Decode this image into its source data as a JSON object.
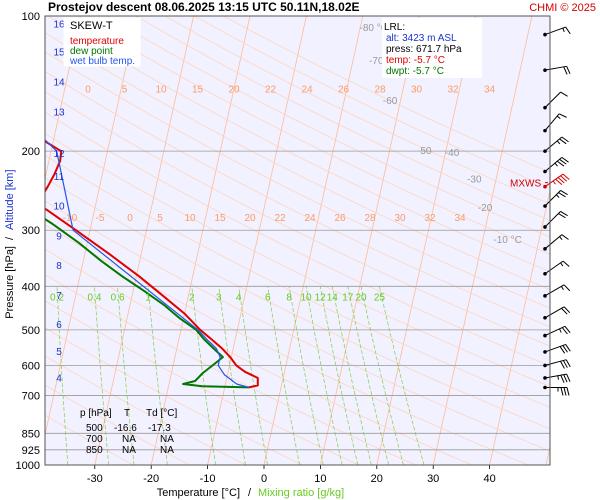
{
  "header": {
    "title": "Prostejov   descent   08.06.2025 13:15 UTC  50.11N,18.02E",
    "copyright": "CHMI © 2025"
  },
  "legend": {
    "title": "SKEW-T",
    "items": [
      {
        "label": "temperature",
        "color": "#e00000"
      },
      {
        "label": "dew point",
        "color": "#007700"
      },
      {
        "label": "wet bulb temp.",
        "color": "#2255ee"
      }
    ]
  },
  "lrl": {
    "title": "LRL:",
    "alt": "alt: 3423 m ASL",
    "press": "press: 671.7 hPa",
    "temp": "temp: -5.7 °C",
    "dwpt": "dwpt: -5.7 °C"
  },
  "table": {
    "headers": [
      "p [hPa]",
      "T",
      "Td [°C]"
    ],
    "rows": [
      [
        "500",
        "-16.6",
        "-17.3"
      ],
      [
        "700",
        "NA",
        "NA"
      ],
      [
        "850",
        "NA",
        "NA"
      ]
    ]
  },
  "mxws_label": "MXWS",
  "colors": {
    "temperature": "#e00000",
    "dewpoint": "#007700",
    "wetbulb": "#2255ee",
    "isotherm": "#ffbb99",
    "mixing": "#88cc44",
    "adiabat": "#ffd2b8",
    "background": "#f1f1ff"
  },
  "chart_data": {
    "type": "line",
    "subtype": "skew-t log-p diagram",
    "xlabel": "Temperature [°C]",
    "xlabel_secondary": "Mixing ratio [g/kg]",
    "ylabel": "Pressure [hPa]",
    "ylabel_secondary": "Altitude [km]",
    "x_ticks": [
      "-30",
      "-20",
      "-10",
      "0",
      "10",
      "20",
      "30",
      "40"
    ],
    "x_tick_values": [
      -30,
      -20,
      -10,
      0,
      10,
      20,
      30,
      40
    ],
    "xlim": [
      -35,
      45
    ],
    "y_ticks": [
      "100",
      "200",
      "300",
      "400",
      "500",
      "600",
      "700",
      "850",
      "925",
      "1000"
    ],
    "y_tick_values": [
      100,
      200,
      300,
      400,
      500,
      600,
      700,
      850,
      925,
      1000
    ],
    "ylim": [
      1000,
      100
    ],
    "y_scale": "log",
    "altitude_ticks": [
      "16",
      "15",
      "14",
      "13",
      "12",
      "11",
      "10",
      "9",
      "8",
      "7",
      "6",
      "5",
      "4"
    ],
    "altitude_tick_pressures": [
      104,
      120,
      140,
      163,
      202,
      227,
      264,
      308,
      359,
      418,
      485,
      557,
      638
    ],
    "isotherm_labels": [
      {
        "text": "-80 °C",
        "x": 0,
        "p": 108
      },
      {
        "text": "-70",
        "x": 3,
        "p": 128
      },
      {
        "text": "-60",
        "x": 7,
        "p": 157
      },
      {
        "text": "-50",
        "x": 15,
        "p": 203
      },
      {
        "text": "-40",
        "x": 20,
        "p": 205
      },
      {
        "text": "-30",
        "x": 25,
        "p": 235
      },
      {
        "text": "-20",
        "x": 28,
        "p": 272
      },
      {
        "text": "-10 °C",
        "x": 32,
        "p": 320
      }
    ],
    "mixing_ratio_labels": [
      "0.2",
      "0.4",
      "0.6",
      "1",
      "2",
      "3",
      "4",
      "6",
      "8",
      "10",
      "12",
      "14",
      "17",
      "20",
      "25"
    ],
    "mixing_ratio_values": [
      0.2,
      0.4,
      0.6,
      1,
      2,
      3,
      4,
      6,
      8,
      10,
      12,
      14,
      17,
      20,
      25
    ],
    "theta_labels_row1": [
      "0",
      "5",
      "10",
      "15",
      "20",
      "22",
      "24",
      "26",
      "28",
      "30",
      "32",
      "34"
    ],
    "theta_labels_row2": [
      "-10",
      "-5",
      "0",
      "5",
      "10",
      "15",
      "20",
      "22",
      "24",
      "26",
      "28",
      "30",
      "32",
      "34"
    ],
    "series": [
      {
        "name": "temperature",
        "points": [
          {
            "p": 671.7,
            "t": -5.7
          },
          {
            "p": 665,
            "t": -4.2
          },
          {
            "p": 640,
            "t": -4.5
          },
          {
            "p": 620,
            "t": -7.0
          },
          {
            "p": 600,
            "t": -8.8
          },
          {
            "p": 575,
            "t": -10.2
          },
          {
            "p": 550,
            "t": -12.0
          },
          {
            "p": 525,
            "t": -14.2
          },
          {
            "p": 500,
            "t": -16.6
          },
          {
            "p": 460,
            "t": -20.0
          },
          {
            "p": 420,
            "t": -24.5
          },
          {
            "p": 380,
            "t": -29.5
          },
          {
            "p": 340,
            "t": -35.5
          },
          {
            "p": 300,
            "t": -42.5
          },
          {
            "p": 270,
            "t": -48.5
          },
          {
            "p": 262,
            "t": -50.5
          },
          {
            "p": 255,
            "t": -50.0
          },
          {
            "p": 240,
            "t": -49.2
          },
          {
            "p": 225,
            "t": -48.5
          },
          {
            "p": 210,
            "t": -48.0
          },
          {
            "p": 200,
            "t": -48.2
          },
          {
            "p": 190,
            "t": -51.5
          },
          {
            "p": 175,
            "t": -54.5
          },
          {
            "p": 160,
            "t": -57.5
          },
          {
            "p": 150,
            "t": -57.0
          },
          {
            "p": 140,
            "t": -60.5
          },
          {
            "p": 130,
            "t": -62.5
          },
          {
            "p": 120,
            "t": -65.0
          },
          {
            "p": 110,
            "t": -68.5
          },
          {
            "p": 100,
            "t": -70.5
          }
        ]
      },
      {
        "name": "dew point",
        "points": [
          {
            "p": 671.7,
            "t": -5.7
          },
          {
            "p": 668,
            "t": -14.0
          },
          {
            "p": 660,
            "t": -17.5
          },
          {
            "p": 650,
            "t": -15.5
          },
          {
            "p": 625,
            "t": -14.5
          },
          {
            "p": 600,
            "t": -13.0
          },
          {
            "p": 575,
            "t": -11.5
          },
          {
            "p": 550,
            "t": -13.5
          },
          {
            "p": 525,
            "t": -15.5
          },
          {
            "p": 500,
            "t": -17.3
          },
          {
            "p": 470,
            "t": -20.8
          },
          {
            "p": 440,
            "t": -24.0
          },
          {
            "p": 410,
            "t": -28.0
          },
          {
            "p": 380,
            "t": -32.5
          },
          {
            "p": 350,
            "t": -37.0
          },
          {
            "p": 320,
            "t": -41.5
          },
          {
            "p": 290,
            "t": -47.0
          },
          {
            "p": 265,
            "t": -52.5
          },
          {
            "p": 250,
            "t": -57.0
          },
          {
            "p": 235,
            "t": -61.5
          },
          {
            "p": 220,
            "t": -66.0
          },
          {
            "p": 205,
            "t": -72.0
          },
          {
            "p": 190,
            "t": -74.5
          },
          {
            "p": 175,
            "t": -75.5
          },
          {
            "p": 160,
            "t": -76.0
          },
          {
            "p": 145,
            "t": -78.0
          },
          {
            "p": 130,
            "t": -80.0
          },
          {
            "p": 115,
            "t": -82.0
          },
          {
            "p": 100,
            "t": -84.0
          }
        ]
      },
      {
        "name": "wet bulb temp.",
        "points": [
          {
            "p": 671.7,
            "t": -5.7
          },
          {
            "p": 660,
            "t": -8.0
          },
          {
            "p": 630,
            "t": -10.5
          },
          {
            "p": 600,
            "t": -12.0
          },
          {
            "p": 575,
            "t": -12.0
          },
          {
            "p": 550,
            "t": -13.0
          },
          {
            "p": 525,
            "t": -15.0
          },
          {
            "p": 500,
            "t": -17.0
          },
          {
            "p": 300,
            "t": -43.0
          },
          {
            "p": 200,
            "t": -49.0
          },
          {
            "p": 170,
            "t": -56.0
          },
          {
            "p": 150,
            "t": -58.0
          },
          {
            "p": 130,
            "t": -63.0
          },
          {
            "p": 110,
            "t": -69.0
          },
          {
            "p": 100,
            "t": -71.0
          }
        ]
      }
    ],
    "wind_barbs": [
      {
        "p": 110,
        "dir": 250,
        "speed_kt": 15
      },
      {
        "p": 132,
        "dir": 260,
        "speed_kt": 20
      },
      {
        "p": 160,
        "dir": 225,
        "speed_kt": 10
      },
      {
        "p": 180,
        "dir": 220,
        "speed_kt": 15
      },
      {
        "p": 200,
        "dir": 230,
        "speed_kt": 25
      },
      {
        "p": 222,
        "dir": 230,
        "speed_kt": 35
      },
      {
        "p": 240,
        "dir": 235,
        "speed_kt": 45
      },
      {
        "p": 265,
        "dir": 225,
        "speed_kt": 25
      },
      {
        "p": 295,
        "dir": 225,
        "speed_kt": 20
      },
      {
        "p": 330,
        "dir": 230,
        "speed_kt": 15
      },
      {
        "p": 375,
        "dir": 235,
        "speed_kt": 15
      },
      {
        "p": 420,
        "dir": 240,
        "speed_kt": 15
      },
      {
        "p": 470,
        "dir": 240,
        "speed_kt": 20
      },
      {
        "p": 515,
        "dir": 245,
        "speed_kt": 25
      },
      {
        "p": 560,
        "dir": 250,
        "speed_kt": 30
      },
      {
        "p": 600,
        "dir": 255,
        "speed_kt": 30
      },
      {
        "p": 640,
        "dir": 260,
        "speed_kt": 35
      },
      {
        "p": 672,
        "dir": 270,
        "speed_kt": 35
      }
    ],
    "mxws_p": 235
  }
}
